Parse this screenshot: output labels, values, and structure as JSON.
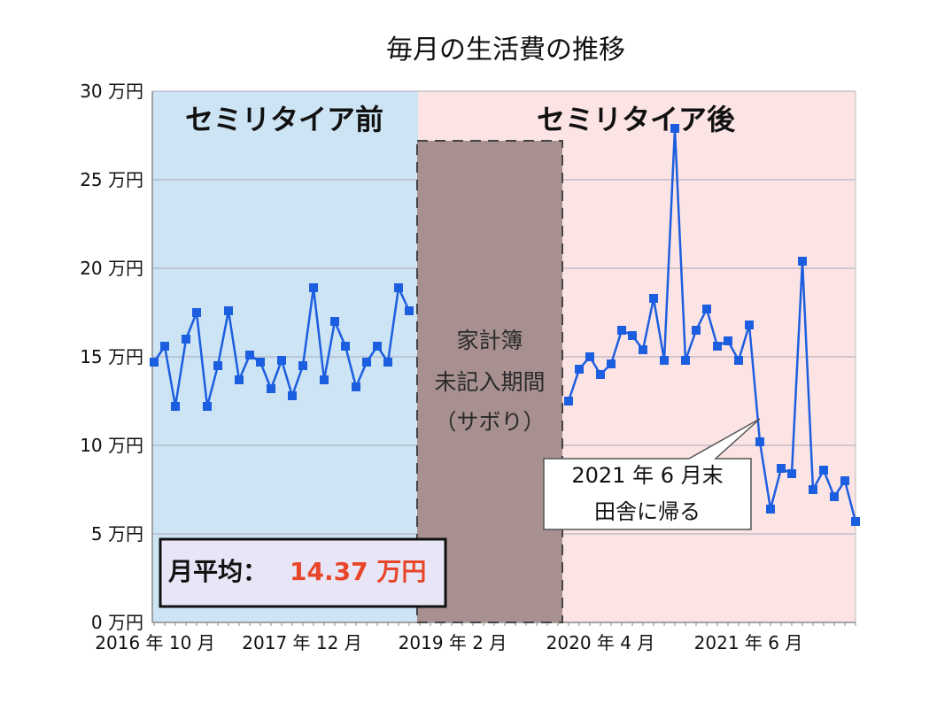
{
  "chart_data": {
    "type": "line",
    "title": "毎月の生活費の推移",
    "y_unit": "万円",
    "ylim": [
      0,
      30
    ],
    "y_ticks": [
      0,
      5,
      10,
      15,
      20,
      25,
      30
    ],
    "y_tick_labels": [
      "0 万円",
      "5 万円",
      "10 万円",
      "15 万円",
      "20 万円",
      "25 万円",
      "30 万円"
    ],
    "x_tick_labels": [
      "2016 年 10 月",
      "2017 年 12 月",
      "2019 年 2 月",
      "2020 年 4 月",
      "2021 年 6 月"
    ],
    "line_color": "#1c5ee0",
    "series": [
      {
        "name": "セミリタイア前",
        "start_index": 0,
        "values": [
          14.7,
          15.6,
          12.2,
          16.0,
          17.5,
          12.2,
          14.5,
          17.6,
          13.7,
          15.1,
          14.7,
          13.2,
          14.8,
          12.8,
          14.5,
          18.9,
          13.7,
          17.0,
          15.6,
          13.3,
          14.7,
          15.6,
          14.7,
          18.9,
          17.6
        ]
      },
      {
        "name": "セミリタイア後",
        "start_index": 39,
        "values": [
          12.5,
          14.3,
          15.0,
          14.0,
          14.6,
          16.5,
          16.2,
          15.4,
          18.3,
          14.8,
          27.9,
          14.8,
          16.5,
          17.7,
          15.6,
          15.9,
          14.8,
          16.8,
          10.2,
          6.4,
          8.7,
          8.4,
          20.4,
          7.5,
          8.6,
          7.1,
          8.0,
          5.7
        ]
      }
    ],
    "total_points": 67,
    "regions": {
      "before": {
        "label": "セミリタイア前",
        "color": "#cde4f4"
      },
      "gap": {
        "label_lines": [
          "家計簿",
          "未記入期間",
          "（サボり）"
        ],
        "color": "#a89090"
      },
      "after": {
        "label": "セミリタイア後",
        "color": "#fde4e4"
      }
    },
    "callout": {
      "lines": [
        "2021 年 6 月末",
        "田舎に帰る"
      ]
    },
    "average": {
      "label": "月平均：",
      "value": "14.37 万円"
    }
  }
}
